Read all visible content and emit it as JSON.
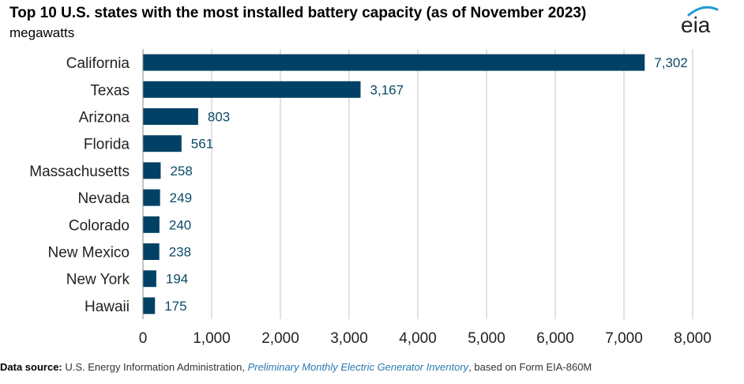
{
  "chart_data": {
    "type": "bar",
    "orientation": "horizontal",
    "title": "Top 10 U.S. states with the most installed battery capacity (as of November 2023)",
    "subtitle": "megawatts",
    "categories": [
      "California",
      "Texas",
      "Arizona",
      "Florida",
      "Massachusetts",
      "Nevada",
      "Colorado",
      "New Mexico",
      "New York",
      "Hawaii"
    ],
    "values": [
      7302,
      3167,
      803,
      561,
      258,
      249,
      240,
      238,
      194,
      175
    ],
    "value_labels": [
      "7,302",
      "3,167",
      "803",
      "561",
      "258",
      "249",
      "240",
      "238",
      "194",
      "175"
    ],
    "xlim": [
      0,
      8000
    ],
    "xticks": [
      0,
      1000,
      2000,
      3000,
      4000,
      5000,
      6000,
      7000,
      8000
    ],
    "xtick_labels": [
      "0",
      "1,000",
      "2,000",
      "3,000",
      "4,000",
      "5,000",
      "6,000",
      "7,000",
      "8,000"
    ],
    "grid": "vertical",
    "legend": "none",
    "bar_color": "#004165",
    "grid_color": "#d9d9d9"
  },
  "logo": {
    "text": "eia",
    "arc_color": "#1f9ad6"
  },
  "footer": {
    "label": "Data source:",
    "text_a": " U.S. Energy Information Administration, ",
    "link": "Preliminary Monthly Electric Generator Inventory",
    "text_b": ", based on Form EIA-860M"
  }
}
